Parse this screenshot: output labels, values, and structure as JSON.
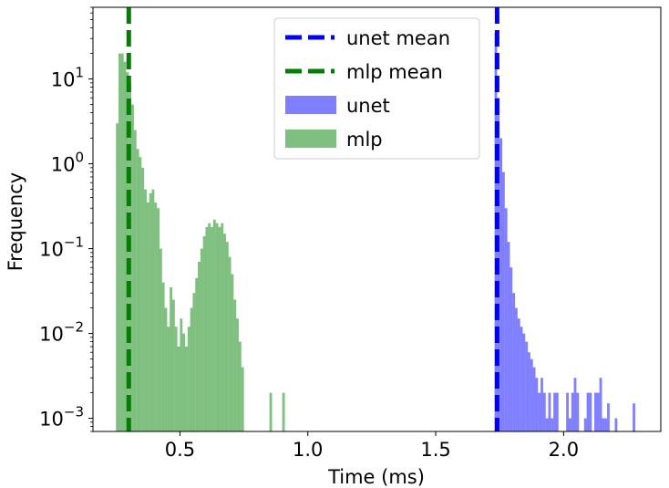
{
  "chart_data": {
    "type": "histogram",
    "title": "",
    "xlabel": "Time (ms)",
    "ylabel": "Frequency",
    "xlim": [
      0.16,
      2.38
    ],
    "ylim": [
      0.0007,
      70
    ],
    "yscale": "log",
    "grid": false,
    "legend_position": "top-center",
    "x_ticks": [
      0.5,
      1.0,
      1.5,
      2.0
    ],
    "x_tick_labels": [
      "0.5",
      "1.0",
      "1.5",
      "2.0"
    ],
    "y_ticks": [
      0.001,
      0.01,
      0.1,
      1,
      10
    ],
    "y_tick_labels": [
      {
        "base": "10",
        "exp": "−3"
      },
      {
        "base": "10",
        "exp": "−2"
      },
      {
        "base": "10",
        "exp": "−1"
      },
      {
        "base": "10",
        "exp": "0"
      },
      {
        "base": "10",
        "exp": "1"
      }
    ],
    "series": [
      {
        "name": "mlp",
        "kind": "hist",
        "color": "#008000",
        "alpha": 0.5,
        "bin_width": 0.01,
        "bins": [
          [
            0.255,
            3.0
          ],
          [
            0.265,
            20
          ],
          [
            0.275,
            20
          ],
          [
            0.285,
            16
          ],
          [
            0.295,
            12
          ],
          [
            0.305,
            9
          ],
          [
            0.315,
            5
          ],
          [
            0.325,
            2.5
          ],
          [
            0.335,
            1.5
          ],
          [
            0.345,
            1.2
          ],
          [
            0.355,
            0.9
          ],
          [
            0.365,
            0.5
          ],
          [
            0.375,
            0.35
          ],
          [
            0.385,
            0.45
          ],
          [
            0.395,
            0.5
          ],
          [
            0.405,
            0.35
          ],
          [
            0.415,
            0.3
          ],
          [
            0.425,
            0.1
          ],
          [
            0.435,
            0.04
          ],
          [
            0.445,
            0.02
          ],
          [
            0.455,
            0.012
          ],
          [
            0.465,
            0.035
          ],
          [
            0.475,
            0.025
          ],
          [
            0.485,
            0.012
          ],
          [
            0.495,
            0.007
          ],
          [
            0.505,
            0.015
          ],
          [
            0.515,
            0.01
          ],
          [
            0.525,
            0.007
          ],
          [
            0.535,
            0.012
          ],
          [
            0.545,
            0.02
          ],
          [
            0.555,
            0.03
          ],
          [
            0.565,
            0.045
          ],
          [
            0.575,
            0.07
          ],
          [
            0.585,
            0.1
          ],
          [
            0.595,
            0.14
          ],
          [
            0.605,
            0.18
          ],
          [
            0.615,
            0.2
          ],
          [
            0.625,
            0.18
          ],
          [
            0.635,
            0.22
          ],
          [
            0.645,
            0.2
          ],
          [
            0.655,
            0.18
          ],
          [
            0.665,
            0.2
          ],
          [
            0.675,
            0.15
          ],
          [
            0.685,
            0.12
          ],
          [
            0.695,
            0.08
          ],
          [
            0.705,
            0.05
          ],
          [
            0.715,
            0.025
          ],
          [
            0.725,
            0.015
          ],
          [
            0.735,
            0.008
          ],
          [
            0.745,
            0.004
          ],
          [
            0.855,
            0.002
          ],
          [
            0.905,
            0.002
          ]
        ]
      },
      {
        "name": "unet",
        "kind": "hist",
        "color": "#0000ff",
        "alpha": 0.5,
        "bin_width": 0.01,
        "bins": [
          [
            1.735,
            35
          ],
          [
            1.745,
            6
          ],
          [
            1.755,
            2.0
          ],
          [
            1.765,
            0.8
          ],
          [
            1.775,
            0.3
          ],
          [
            1.785,
            0.12
          ],
          [
            1.795,
            0.06
          ],
          [
            1.805,
            0.03
          ],
          [
            1.815,
            0.02
          ],
          [
            1.825,
            0.015
          ],
          [
            1.835,
            0.012
          ],
          [
            1.845,
            0.01
          ],
          [
            1.855,
            0.008
          ],
          [
            1.865,
            0.006
          ],
          [
            1.875,
            0.005
          ],
          [
            1.885,
            0.004
          ],
          [
            1.895,
            0.003
          ],
          [
            1.905,
            0.002
          ],
          [
            1.915,
            0.003
          ],
          [
            1.925,
            0.002
          ],
          [
            1.935,
            0.001
          ],
          [
            1.945,
            0.002
          ],
          [
            1.955,
            0.001
          ],
          [
            1.965,
            0.002
          ],
          [
            1.975,
            0.002
          ],
          [
            2.015,
            0.002
          ],
          [
            2.025,
            0.001
          ],
          [
            2.035,
            0.002
          ],
          [
            2.045,
            0.003
          ],
          [
            2.055,
            0.002
          ],
          [
            2.085,
            0.001
          ],
          [
            2.095,
            0.002
          ],
          [
            2.105,
            0.002
          ],
          [
            2.125,
            0.002
          ],
          [
            2.135,
            0.002
          ],
          [
            2.145,
            0.003
          ],
          [
            2.155,
            0.001
          ],
          [
            2.165,
            0.001
          ],
          [
            2.175,
            0.0015
          ],
          [
            2.205,
            0.001
          ],
          [
            2.275,
            0.0015
          ]
        ]
      },
      {
        "name": "unet mean",
        "kind": "vline",
        "color": "#0000ff",
        "x": 1.74
      },
      {
        "name": "mlp mean",
        "kind": "vline",
        "color": "#008000",
        "x": 0.3
      }
    ],
    "legend": [
      {
        "label": "unet mean",
        "symbol": "dashed",
        "color": "#0000ff"
      },
      {
        "label": "mlp mean",
        "symbol": "dashed",
        "color": "#008000"
      },
      {
        "label": "unet",
        "symbol": "patch",
        "color": "#0000ff"
      },
      {
        "label": "mlp",
        "symbol": "patch",
        "color": "#008000"
      }
    ]
  }
}
